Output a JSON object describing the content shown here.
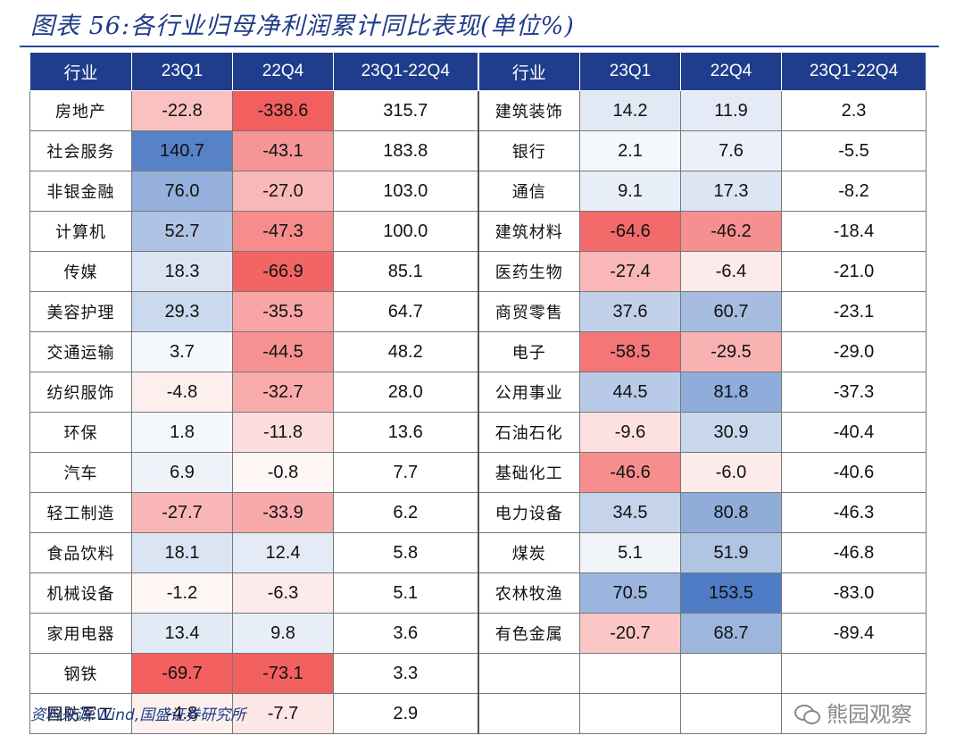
{
  "title": "图表 56:各行业归母净利润累计同比表现(单位%)",
  "headers": [
    "行业",
    "23Q1",
    "22Q4",
    "23Q1-22Q4",
    "行业",
    "23Q1",
    "22Q4",
    "23Q1-22Q4"
  ],
  "left_rows": [
    {
      "name": "房地产",
      "q1": "-22.8",
      "q4": "-338.6",
      "diff": "315.7"
    },
    {
      "name": "社会服务",
      "q1": "140.7",
      "q4": "-43.1",
      "diff": "183.8"
    },
    {
      "name": "非银金融",
      "q1": "76.0",
      "q4": "-27.0",
      "diff": "103.0"
    },
    {
      "name": "计算机",
      "q1": "52.7",
      "q4": "-47.3",
      "diff": "100.0"
    },
    {
      "name": "传媒",
      "q1": "18.3",
      "q4": "-66.9",
      "diff": "85.1"
    },
    {
      "name": "美容护理",
      "q1": "29.3",
      "q4": "-35.5",
      "diff": "64.7"
    },
    {
      "name": "交通运输",
      "q1": "3.7",
      "q4": "-44.5",
      "diff": "48.2"
    },
    {
      "name": "纺织服饰",
      "q1": "-4.8",
      "q4": "-32.7",
      "diff": "28.0"
    },
    {
      "name": "环保",
      "q1": "1.8",
      "q4": "-11.8",
      "diff": "13.6"
    },
    {
      "name": "汽车",
      "q1": "6.9",
      "q4": "-0.8",
      "diff": "7.7"
    },
    {
      "name": "轻工制造",
      "q1": "-27.7",
      "q4": "-33.9",
      "diff": "6.2"
    },
    {
      "name": "食品饮料",
      "q1": "18.1",
      "q4": "12.4",
      "diff": "5.8"
    },
    {
      "name": "机械设备",
      "q1": "-1.2",
      "q4": "-6.3",
      "diff": "5.1"
    },
    {
      "name": "家用电器",
      "q1": "13.4",
      "q4": "9.8",
      "diff": "3.6"
    },
    {
      "name": "钢铁",
      "q1": "-69.7",
      "q4": "-73.1",
      "diff": "3.3"
    },
    {
      "name": "国防军工",
      "q1": "-4.8",
      "q4": "-7.7",
      "diff": "2.9"
    }
  ],
  "right_rows": [
    {
      "name": "建筑装饰",
      "q1": "14.2",
      "q4": "11.9",
      "diff": "2.3"
    },
    {
      "name": "银行",
      "q1": "2.1",
      "q4": "7.6",
      "diff": "-5.5"
    },
    {
      "name": "通信",
      "q1": "9.1",
      "q4": "17.3",
      "diff": "-8.2"
    },
    {
      "name": "建筑材料",
      "q1": "-64.6",
      "q4": "-46.2",
      "diff": "-18.4"
    },
    {
      "name": "医药生物",
      "q1": "-27.4",
      "q4": "-6.4",
      "diff": "-21.0"
    },
    {
      "name": "商贸零售",
      "q1": "37.6",
      "q4": "60.7",
      "diff": "-23.1"
    },
    {
      "name": "电子",
      "q1": "-58.5",
      "q4": "-29.5",
      "diff": "-29.0"
    },
    {
      "name": "公用事业",
      "q1": "44.5",
      "q4": "81.8",
      "diff": "-37.3"
    },
    {
      "name": "石油石化",
      "q1": "-9.6",
      "q4": "30.9",
      "diff": "-40.4"
    },
    {
      "name": "基础化工",
      "q1": "-46.6",
      "q4": "-6.0",
      "diff": "-40.6"
    },
    {
      "name": "电力设备",
      "q1": "34.5",
      "q4": "80.8",
      "diff": "-46.3"
    },
    {
      "name": "煤炭",
      "q1": "5.1",
      "q4": "51.9",
      "diff": "-46.8"
    },
    {
      "name": "农林牧渔",
      "q1": "70.5",
      "q4": "153.5",
      "diff": "-83.0"
    },
    {
      "name": "有色金属",
      "q1": "-20.7",
      "q4": "68.7",
      "diff": "-89.4"
    },
    {
      "name": "",
      "q1": "",
      "q4": "",
      "diff": ""
    },
    {
      "name": "",
      "q1": "",
      "q4": "",
      "diff": ""
    }
  ],
  "colors": {
    "header_bg": "#1f3d8c",
    "title_color": "#1f3c88",
    "positive_max": "#4f7cc4",
    "negative_max": "#f25f5f"
  },
  "source": "资料来源:Wind,国盛证券研究所",
  "watermark": "熊园观察",
  "watermark_icon": "wechat-icon"
}
